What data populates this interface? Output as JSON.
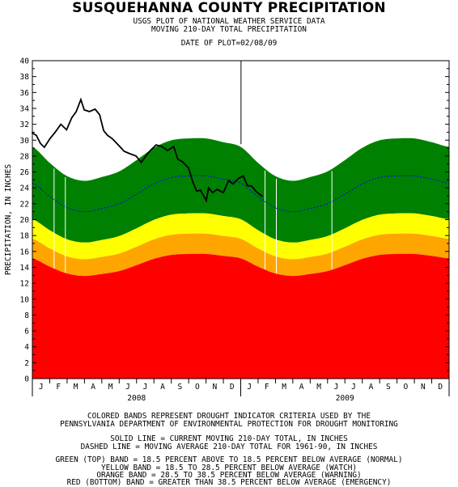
{
  "header": {
    "title": "SUSQUEHANNA COUNTY PRECIPITATION",
    "subtitle1": "USGS PLOT OF NATIONAL WEATHER SERVICE DATA",
    "subtitle2": "MOVING 210-DAY TOTAL PRECIPITATION",
    "date_of_plot": "DATE OF PLOT=02/08/09"
  },
  "footer": {
    "bands_line1": "COLORED BANDS REPRESENT DROUGHT INDICATOR CRITERIA USED BY THE",
    "bands_line2": "PENNSYLVANIA DEPARTMENT OF ENVIRONMENTAL PROTECTION FOR DROUGHT MONITORING",
    "solid_line": "SOLID LINE = CURRENT MOVING 210-DAY TOTAL, IN INCHES",
    "dashed_line": "DASHED LINE = MOVING AVERAGE 210-DAY TOTAL FOR 1961-90, IN INCHES",
    "green_band": "GREEN (TOP) BAND = 18.5 PERCENT ABOVE TO 18.5 PERCENT BELOW AVERAGE (NORMAL)",
    "yellow_band": "YELLOW BAND = 18.5 TO 28.5 PERCENT BELOW AVERAGE (WATCH)",
    "orange_band": "ORANGE BAND = 28.5 TO 38.5 PERCENT BELOW AVERAGE (WARNING)",
    "red_band": "RED (BOTTOM) BAND = GREATER THAN 38.5 PERCENT BELOW AVERAGE (EMERGENCY)"
  },
  "colors": {
    "green": "#008000",
    "yellow": "#ffff00",
    "orange": "#ffa500",
    "red": "#ff0000",
    "average_line": "#0000ff",
    "current_line": "#000000"
  },
  "chart_data": {
    "type": "area",
    "title": "SUSQUEHANNA COUNTY PRECIPITATION",
    "ylabel": "PRECIPITATION, IN INCHES",
    "xlabel": "",
    "ylim": [
      0,
      40
    ],
    "y_ticks": [
      0,
      2,
      4,
      6,
      8,
      10,
      12,
      14,
      16,
      18,
      20,
      22,
      24,
      26,
      28,
      30,
      32,
      34,
      36,
      38,
      40
    ],
    "x_month_labels": [
      "J",
      "F",
      "M",
      "A",
      "M",
      "J",
      "J",
      "A",
      "S",
      "O",
      "N",
      "D",
      "J",
      "F",
      "M",
      "A",
      "M",
      "J",
      "J",
      "A",
      "S",
      "O",
      "N",
      "D"
    ],
    "x_year_labels": [
      "2008",
      "2009"
    ],
    "grid": false,
    "band_factors": {
      "green_top": 1.185,
      "green_bottom": 0.815,
      "yellow_bottom": 0.715,
      "orange_bottom": 0.615
    },
    "average_210day_monthly": [
      {
        "month": "Jan 2008",
        "value": 24.6
      },
      {
        "month": "Feb 2008",
        "value": 22.9
      },
      {
        "month": "Mar 2008",
        "value": 21.5
      },
      {
        "month": "Apr 2008",
        "value": 21.0
      },
      {
        "month": "May 2008",
        "value": 21.4
      },
      {
        "month": "Jun 2008",
        "value": 22.0
      },
      {
        "month": "Jul 2008",
        "value": 23.2
      },
      {
        "month": "Aug 2008",
        "value": 24.5
      },
      {
        "month": "Sep 2008",
        "value": 25.3
      },
      {
        "month": "Oct 2008",
        "value": 25.5
      },
      {
        "month": "Nov 2008",
        "value": 25.5
      },
      {
        "month": "Dec 2008",
        "value": 25.1
      },
      {
        "month": "Jan 2009",
        "value": 24.6
      },
      {
        "month": "Feb 2009",
        "value": 22.9
      },
      {
        "month": "Mar 2009",
        "value": 21.5
      },
      {
        "month": "Apr 2009",
        "value": 21.0
      },
      {
        "month": "May 2009",
        "value": 21.4
      },
      {
        "month": "Jun 2009",
        "value": 22.0
      },
      {
        "month": "Jul 2009",
        "value": 23.2
      },
      {
        "month": "Aug 2009",
        "value": 24.5
      },
      {
        "month": "Sep 2009",
        "value": 25.3
      },
      {
        "month": "Oct 2009",
        "value": 25.5
      },
      {
        "month": "Nov 2009",
        "value": 25.5
      },
      {
        "month": "Dec 2009",
        "value": 25.1
      },
      {
        "month": "Jan 2010",
        "value": 24.6
      }
    ],
    "current_210day": [
      {
        "date": "2007-12-20",
        "value": 31.0
      },
      {
        "date": "2008-01-01",
        "value": 30.9
      },
      {
        "date": "2008-01-08",
        "value": 30.6
      },
      {
        "date": "2008-01-15",
        "value": 29.6
      },
      {
        "date": "2008-01-22",
        "value": 29.1
      },
      {
        "date": "2008-02-01",
        "value": 30.2
      },
      {
        "date": "2008-02-10",
        "value": 31.0
      },
      {
        "date": "2008-02-20",
        "value": 32.0
      },
      {
        "date": "2008-03-01",
        "value": 31.3
      },
      {
        "date": "2008-03-10",
        "value": 32.8
      },
      {
        "date": "2008-03-18",
        "value": 33.6
      },
      {
        "date": "2008-03-26",
        "value": 35.1
      },
      {
        "date": "2008-04-01",
        "value": 33.8
      },
      {
        "date": "2008-04-10",
        "value": 33.6
      },
      {
        "date": "2008-04-20",
        "value": 33.9
      },
      {
        "date": "2008-04-28",
        "value": 33.2
      },
      {
        "date": "2008-05-05",
        "value": 31.2
      },
      {
        "date": "2008-05-12",
        "value": 30.6
      },
      {
        "date": "2008-05-20",
        "value": 30.2
      },
      {
        "date": "2008-06-01",
        "value": 29.3
      },
      {
        "date": "2008-06-10",
        "value": 28.6
      },
      {
        "date": "2008-06-20",
        "value": 28.3
      },
      {
        "date": "2008-07-01",
        "value": 28.0
      },
      {
        "date": "2008-07-10",
        "value": 27.2
      },
      {
        "date": "2008-07-18",
        "value": 28.0
      },
      {
        "date": "2008-07-26",
        "value": 28.7
      },
      {
        "date": "2008-08-05",
        "value": 29.4
      },
      {
        "date": "2008-08-15",
        "value": 29.2
      },
      {
        "date": "2008-08-25",
        "value": 28.7
      },
      {
        "date": "2008-09-05",
        "value": 29.2
      },
      {
        "date": "2008-09-12",
        "value": 27.6
      },
      {
        "date": "2008-09-20",
        "value": 27.3
      },
      {
        "date": "2008-10-01",
        "value": 26.5
      },
      {
        "date": "2008-10-08",
        "value": 24.8
      },
      {
        "date": "2008-10-15",
        "value": 23.6
      },
      {
        "date": "2008-10-22",
        "value": 23.7
      },
      {
        "date": "2008-11-01",
        "value": 22.4
      },
      {
        "date": "2008-11-05",
        "value": 24.0
      },
      {
        "date": "2008-11-12",
        "value": 23.4
      },
      {
        "date": "2008-11-20",
        "value": 23.8
      },
      {
        "date": "2008-12-01",
        "value": 23.4
      },
      {
        "date": "2008-12-10",
        "value": 24.9
      },
      {
        "date": "2008-12-18",
        "value": 24.5
      },
      {
        "date": "2008-12-28",
        "value": 25.2
      },
      {
        "date": "2009-01-05",
        "value": 25.5
      },
      {
        "date": "2009-01-12",
        "value": 24.3
      },
      {
        "date": "2009-01-20",
        "value": 24.2
      },
      {
        "date": "2009-01-28",
        "value": 23.5
      },
      {
        "date": "2009-02-08",
        "value": 22.9
      }
    ],
    "vertical_marker_date": "2009-01-01"
  }
}
